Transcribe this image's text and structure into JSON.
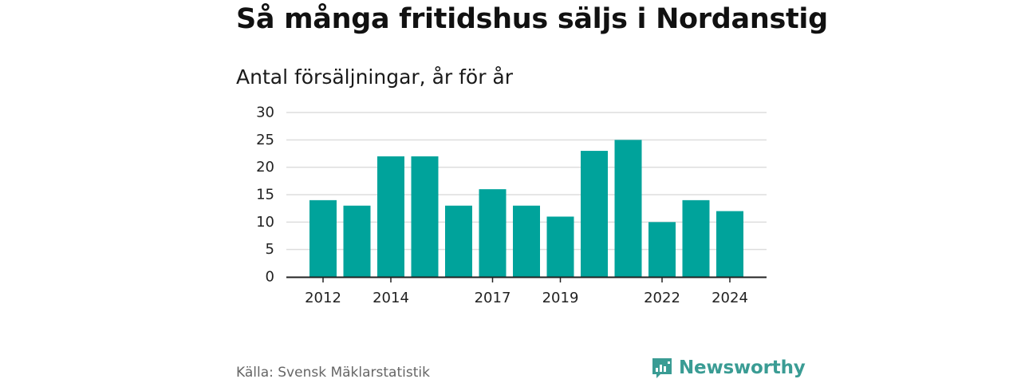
{
  "header": {
    "title": "Så många fritidshus säljs i Nordanstig",
    "subtitle": "Antal försäljningar, år för år"
  },
  "footer": {
    "source": "Källa: Svensk Mäklarstatistik",
    "brand": "Newsworthy"
  },
  "colors": {
    "bar": "#00a39b",
    "grid": "#dddddd",
    "axis": "#222222",
    "brand": "#3a9c94"
  },
  "icons": {
    "brand_logo": "newsworthy-logo-icon"
  },
  "chart_data": {
    "type": "bar",
    "categories": [
      "2012",
      "2013",
      "2014",
      "2015",
      "2016",
      "2017",
      "2018",
      "2019",
      "2020",
      "2021",
      "2022",
      "2023",
      "2024"
    ],
    "values": [
      14,
      13,
      22,
      22,
      13,
      16,
      13,
      11,
      23,
      25,
      10,
      14,
      12
    ],
    "x_tick_labels": [
      "2012",
      "2014",
      "2017",
      "2019",
      "2022",
      "2024"
    ],
    "y_ticks": [
      0,
      5,
      10,
      15,
      20,
      25,
      30
    ],
    "ylim": [
      0,
      30
    ],
    "grid": true,
    "legend": "none"
  }
}
